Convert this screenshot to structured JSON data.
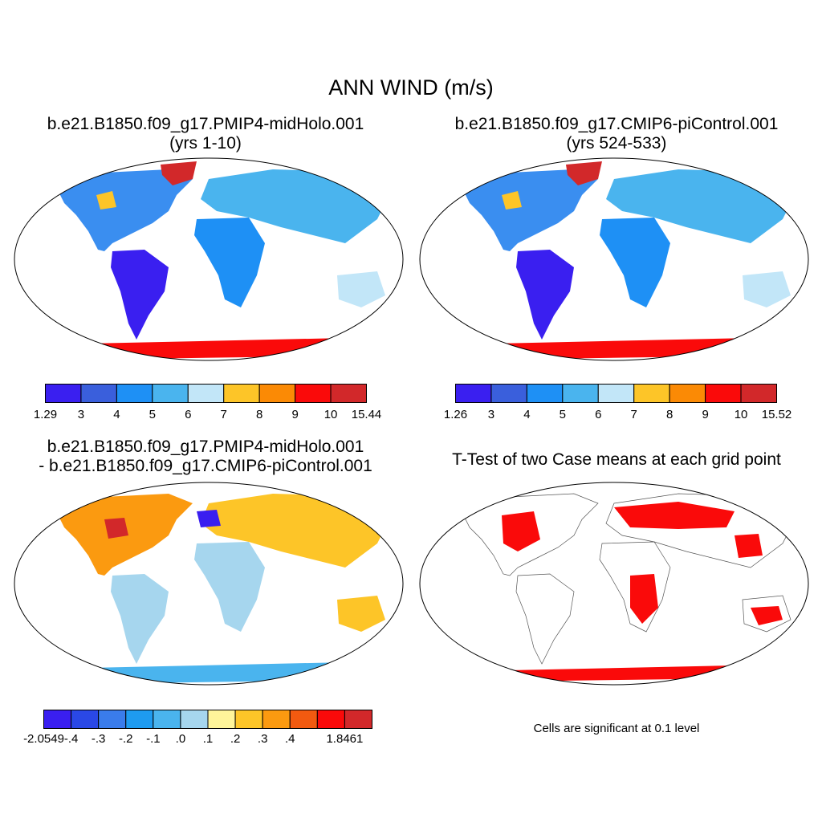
{
  "title": "ANN WIND (m/s)",
  "panels": [
    {
      "line1": "b.e21.B1850.f09_g17.PMIP4-midHolo.001",
      "line2": "(yrs 1-10)"
    },
    {
      "line1": "b.e21.B1850.f09_g17.CMIP6-piControl.001",
      "line2": "(yrs 524-533)"
    },
    {
      "line1": "b.e21.B1850.f09_g17.PMIP4-midHolo.001",
      "line2": "- b.e21.B1850.f09_g17.CMIP6-piControl.001"
    },
    {
      "line1": "T-Test of two Case means at each grid point",
      "line2": ""
    }
  ],
  "colorbars": [
    {
      "colors": [
        "#3a1ff0",
        "#3a5fdc",
        "#1e90f5",
        "#4ab4ee",
        "#c2e6f8",
        "#fdc528",
        "#fb8a05",
        "#fa0a0a",
        "#d2282a"
      ],
      "labels": [
        "1.29",
        "3",
        "4",
        "5",
        "6",
        "7",
        "8",
        "9",
        "10",
        "15.44"
      ]
    },
    {
      "colors": [
        "#3a1ff0",
        "#3a5fdc",
        "#1e90f5",
        "#4ab4ee",
        "#c2e6f8",
        "#fdc528",
        "#fb8a05",
        "#fa0a0a",
        "#d2282a"
      ],
      "labels": [
        "1.26",
        "3",
        "4",
        "5",
        "6",
        "7",
        "8",
        "9",
        "10",
        "15.52"
      ]
    },
    {
      "colors": [
        "#3a1ff0",
        "#2a48e6",
        "#3a7ceb",
        "#1e9bf0",
        "#4ab4ee",
        "#a6d6ee",
        "#fff59a",
        "#fdc528",
        "#fb9a10",
        "#f25a10",
        "#fa0a0a",
        "#d2282a"
      ],
      "labels": [
        "-2.0549",
        "-.4",
        "-.3",
        "-.2",
        "-.1",
        ".0",
        ".1",
        ".2",
        ".3",
        ".4",
        "",
        "1.8461"
      ]
    }
  ],
  "note": "Cells are significant at 0.1 level"
}
